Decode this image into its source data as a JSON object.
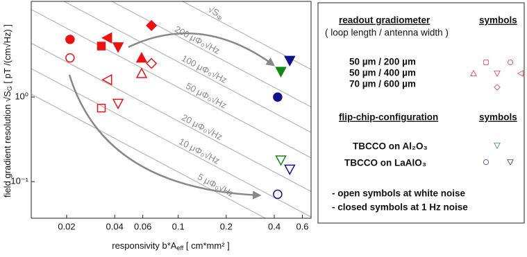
{
  "chart_data": {
    "type": "scatter",
    "x_label": "responsivity b*A",
    "x_label_sub": "eff",
    "x_label_tail": "  [ cm*mm² ]",
    "y_label": "field gradient resolution √S",
    "y_label_sub": "G",
    "y_label_tail": "  [ pT /(cm√Hz) ]",
    "log_x": true,
    "log_y": true,
    "xlim": [
      0.012,
      0.68
    ],
    "ylim": [
      0.037,
      13.5
    ],
    "xticks": [
      0.02,
      0.04,
      0.06,
      0.1,
      0.2,
      0.4,
      0.6
    ],
    "yticks": [
      {
        "value": 1,
        "label": "10⁰"
      },
      {
        "value": 0.1,
        "label": "10⁻¹"
      }
    ],
    "series": [
      {
        "marker": "circle",
        "color": "#ee1111",
        "filled": [
          true,
          false
        ],
        "x": [
          0.021,
          0.021
        ],
        "values": [
          4.8,
          2.9
        ]
      },
      {
        "marker": "square",
        "color": "#ee1111",
        "filled": [
          true,
          false
        ],
        "x": [
          0.033,
          0.033
        ],
        "values": [
          4.0,
          0.74
        ]
      },
      {
        "marker": "left",
        "color": "#ee1111",
        "filled": [
          true,
          false
        ],
        "x": [
          0.036,
          0.036
        ],
        "values": [
          5.0,
          1.6
        ]
      },
      {
        "marker": "down",
        "color": "#ee1111",
        "filled": [
          true,
          false
        ],
        "x": [
          0.042,
          0.042
        ],
        "values": [
          3.9,
          0.84
        ]
      },
      {
        "marker": "up",
        "color": "#ee1111",
        "filled": [
          true,
          false
        ],
        "x": [
          0.059,
          0.059
        ],
        "values": [
          2.9,
          1.9
        ]
      },
      {
        "marker": "diamond",
        "color": "#ee1111",
        "filled": [
          true,
          false
        ],
        "x": [
          0.068,
          0.068
        ],
        "values": [
          7.0,
          2.5
        ]
      },
      {
        "marker": "down",
        "color": "#118811",
        "filled": [
          true,
          false
        ],
        "x": [
          0.44,
          0.44
        ],
        "values": [
          2.0,
          0.18
        ]
      },
      {
        "marker": "circle",
        "color": "#11118f",
        "filled": [
          true,
          false
        ],
        "x": [
          0.42,
          0.42
        ],
        "values": [
          1.0,
          0.071
        ]
      },
      {
        "marker": "down",
        "color": "#11118f",
        "filled": [
          true,
          false
        ],
        "x": [
          0.5,
          0.5
        ],
        "values": [
          2.7,
          0.14
        ]
      }
    ],
    "reference_lines": [
      {
        "label": "√S",
        "label_sub": "Φ",
        "x": [
          0.01,
          1
        ],
        "values": [
          144,
          1.44
        ]
      },
      {
        "label": "200 μΦ₀√Hz",
        "x": [
          0.01,
          1
        ],
        "values": [
          52,
          0.52
        ]
      },
      {
        "label": "100 μΦ₀√Hz",
        "x": [
          0.01,
          1
        ],
        "values": [
          26,
          0.26
        ]
      },
      {
        "label": "50 μΦ₀√Hz",
        "x": [
          0.01,
          1
        ],
        "values": [
          13,
          0.13
        ]
      },
      {
        "label": "20 μΦ₀√Hz",
        "x": [
          0.01,
          1
        ],
        "values": [
          5.2,
          0.052
        ]
      },
      {
        "label": "10 μΦ₀√Hz",
        "x": [
          0.01,
          1
        ],
        "values": [
          2.6,
          0.026
        ]
      },
      {
        "label": "5 μΦ₀√Hz",
        "x": [
          0.01,
          1
        ],
        "values": [
          1.3,
          0.013
        ]
      }
    ]
  },
  "legend_panel": {
    "header_left": "readout gradiometer",
    "header_right": "symbols",
    "subheader": "( loop length / antenna width )",
    "rows": [
      "50 µm / 200 µm",
      "50 µm / 400 µm",
      "70 µm / 600 µm"
    ],
    "header2_left": "flip-chip-configuration",
    "header2_right": "symbols",
    "substrates": [
      "TBCCO on Al₂O₃",
      "TBCCO on LaAlO₃"
    ],
    "notes": [
      "- open symbols at white noise",
      "- closed symbols at 1 Hz noise"
    ]
  }
}
